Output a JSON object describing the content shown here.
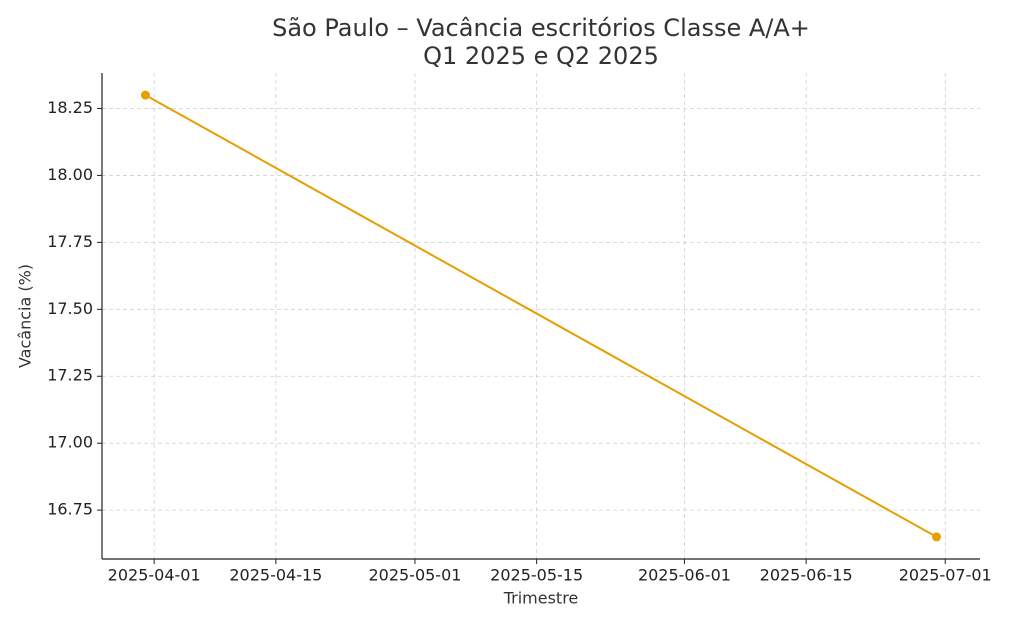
{
  "chart_data": {
    "type": "line",
    "title": [
      "São Paulo – Vacância escritórios Classe A/A+",
      "Q1 2025 e Q2 2025"
    ],
    "xlabel": "Trimestre",
    "ylabel": "Vacância (%)",
    "series": [
      {
        "name": "Vacância",
        "color": "#e69f00",
        "x": [
          "2025-03-31",
          "2025-06-30"
        ],
        "values": [
          18.3,
          16.65
        ]
      }
    ],
    "xlim": [
      "2025-03-26",
      "2025-07-05"
    ],
    "xticks": [
      "2025-04-01",
      "2025-04-15",
      "2025-05-01",
      "2025-05-15",
      "2025-06-01",
      "2025-06-15",
      "2025-07-01"
    ],
    "ylim": [
      16.5675,
      18.3825
    ],
    "yticks": [
      16.75,
      {
        "value": 17,
        "label": "17.00"
      },
      17.25,
      {
        "value": 17.5,
        "label": "17.50"
      },
      17.75,
      {
        "value": 18,
        "label": "18.00"
      },
      18.25
    ],
    "grid": true
  }
}
